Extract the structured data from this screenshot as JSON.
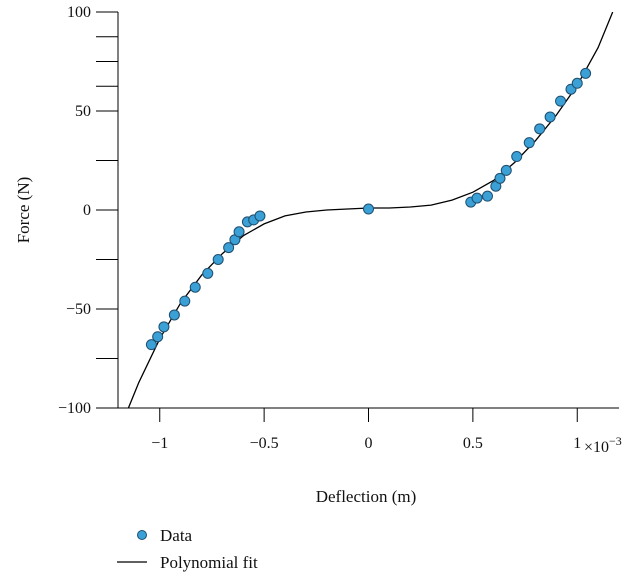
{
  "chart_data": {
    "type": "scatter",
    "xlabel": "Deflection (m)",
    "ylabel": "Force (N)",
    "x_multiplier": "×10",
    "x_multiplier_exponent": "−3",
    "xlim": [
      -1.2,
      1.2
    ],
    "ylim": [
      -100,
      100
    ],
    "x_ticks": [
      {
        "value": -1,
        "label": "−1"
      },
      {
        "value": -0.5,
        "label": "−0.5"
      },
      {
        "value": 0,
        "label": "0"
      },
      {
        "value": 0.5,
        "label": "0.5"
      },
      {
        "value": 1,
        "label": "1"
      }
    ],
    "y_ticks": [
      {
        "value": 100,
        "label": "100"
      },
      {
        "value": 87.5,
        "label": ""
      },
      {
        "value": 75,
        "label": ""
      },
      {
        "value": 62.5,
        "label": ""
      },
      {
        "value": 50,
        "label": "50"
      },
      {
        "value": 25,
        "label": ""
      },
      {
        "value": 0,
        "label": "0"
      },
      {
        "value": -25,
        "label": ""
      },
      {
        "value": -50,
        "label": "−50"
      },
      {
        "value": -75,
        "label": ""
      },
      {
        "value": -100,
        "label": "−100"
      }
    ],
    "grid": false,
    "legend_position": "bottom-left",
    "series": [
      {
        "name": "Data",
        "kind": "points",
        "color": "#3aa0d6",
        "points": [
          [
            -1.04,
            -68
          ],
          [
            -1.01,
            -64
          ],
          [
            -0.98,
            -59
          ],
          [
            -0.93,
            -53
          ],
          [
            -0.88,
            -46
          ],
          [
            -0.83,
            -39
          ],
          [
            -0.77,
            -32
          ],
          [
            -0.72,
            -25
          ],
          [
            -0.67,
            -19
          ],
          [
            -0.64,
            -15
          ],
          [
            -0.62,
            -11
          ],
          [
            -0.58,
            -6
          ],
          [
            -0.55,
            -5
          ],
          [
            -0.52,
            -3
          ],
          [
            0.0,
            0.5
          ],
          [
            0.49,
            4
          ],
          [
            0.52,
            6
          ],
          [
            0.57,
            7
          ],
          [
            0.61,
            12
          ],
          [
            0.63,
            16
          ],
          [
            0.66,
            20
          ],
          [
            0.71,
            27
          ],
          [
            0.77,
            34
          ],
          [
            0.82,
            41
          ],
          [
            0.87,
            47
          ],
          [
            0.92,
            55
          ],
          [
            0.97,
            61
          ],
          [
            1.0,
            64
          ],
          [
            1.04,
            69
          ]
        ]
      },
      {
        "name": "Polynomial fit",
        "kind": "line",
        "color": "#000000",
        "points": [
          [
            -1.15,
            -100
          ],
          [
            -1.1,
            -87
          ],
          [
            -1.0,
            -65
          ],
          [
            -0.9,
            -47
          ],
          [
            -0.8,
            -33
          ],
          [
            -0.7,
            -22
          ],
          [
            -0.6,
            -13
          ],
          [
            -0.5,
            -7
          ],
          [
            -0.4,
            -3
          ],
          [
            -0.3,
            -1
          ],
          [
            -0.2,
            0
          ],
          [
            -0.1,
            0.5
          ],
          [
            0.0,
            1
          ],
          [
            0.1,
            1
          ],
          [
            0.2,
            1.5
          ],
          [
            0.3,
            2.5
          ],
          [
            0.4,
            5
          ],
          [
            0.5,
            9
          ],
          [
            0.6,
            15
          ],
          [
            0.7,
            24
          ],
          [
            0.8,
            35
          ],
          [
            0.9,
            48
          ],
          [
            1.0,
            63
          ],
          [
            1.1,
            82
          ],
          [
            1.17,
            100
          ]
        ]
      }
    ]
  }
}
